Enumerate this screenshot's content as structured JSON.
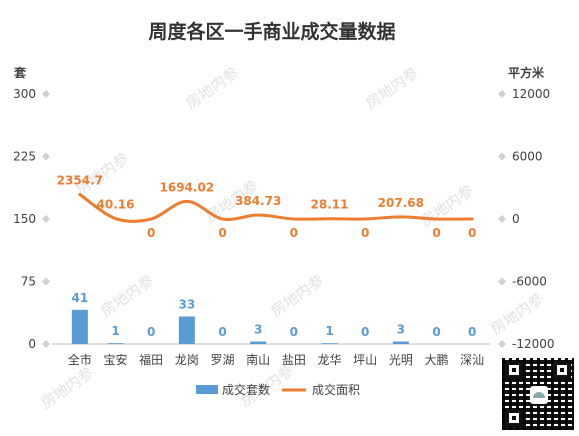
{
  "chart_data": {
    "type": "bar+line",
    "title": "周度各区一手商业成交量数据",
    "categories": [
      "全市",
      "宝安",
      "福田",
      "龙岗",
      "罗湖",
      "南山",
      "盐田",
      "龙华",
      "坪山",
      "光明",
      "大鹏",
      "深汕"
    ],
    "series": [
      {
        "name": "成交套数",
        "type": "bar",
        "axis": "left",
        "color": "#5b9bd5",
        "values": [
          41,
          1,
          0,
          33,
          0,
          3,
          0,
          1,
          0,
          3,
          0,
          0
        ],
        "labels": [
          "41",
          "1",
          "0",
          "33",
          "0",
          "3",
          "0",
          "1",
          "0",
          "3",
          "0",
          "0"
        ]
      },
      {
        "name": "成交面积",
        "type": "line",
        "axis": "right",
        "color": "#ed7d31",
        "values": [
          2354.7,
          40.16,
          0,
          1694.02,
          0,
          384.73,
          0,
          28.11,
          0,
          207.68,
          0,
          0
        ],
        "labels": [
          "2354.7",
          "40.16",
          "0",
          "1694.02",
          "0",
          "384.73",
          "0",
          "28.11",
          "0",
          "207.68",
          "0",
          "0"
        ]
      }
    ],
    "left_axis": {
      "label": "套",
      "min": 0,
      "max": 300,
      "ticks": [
        "0",
        "75",
        "150",
        "225",
        "300"
      ]
    },
    "right_axis": {
      "label": "平方米",
      "min": -12000,
      "max": 12000,
      "ticks": [
        "-12000",
        "-6000",
        "0",
        "6000",
        "12000"
      ]
    },
    "legend_position": "bottom",
    "grid": false
  },
  "watermark": "房地内参",
  "colors": {
    "title": "#333333",
    "axis_text": "#404040",
    "bar_label": "#5b9bd5",
    "line_label": "#ed7d31"
  }
}
